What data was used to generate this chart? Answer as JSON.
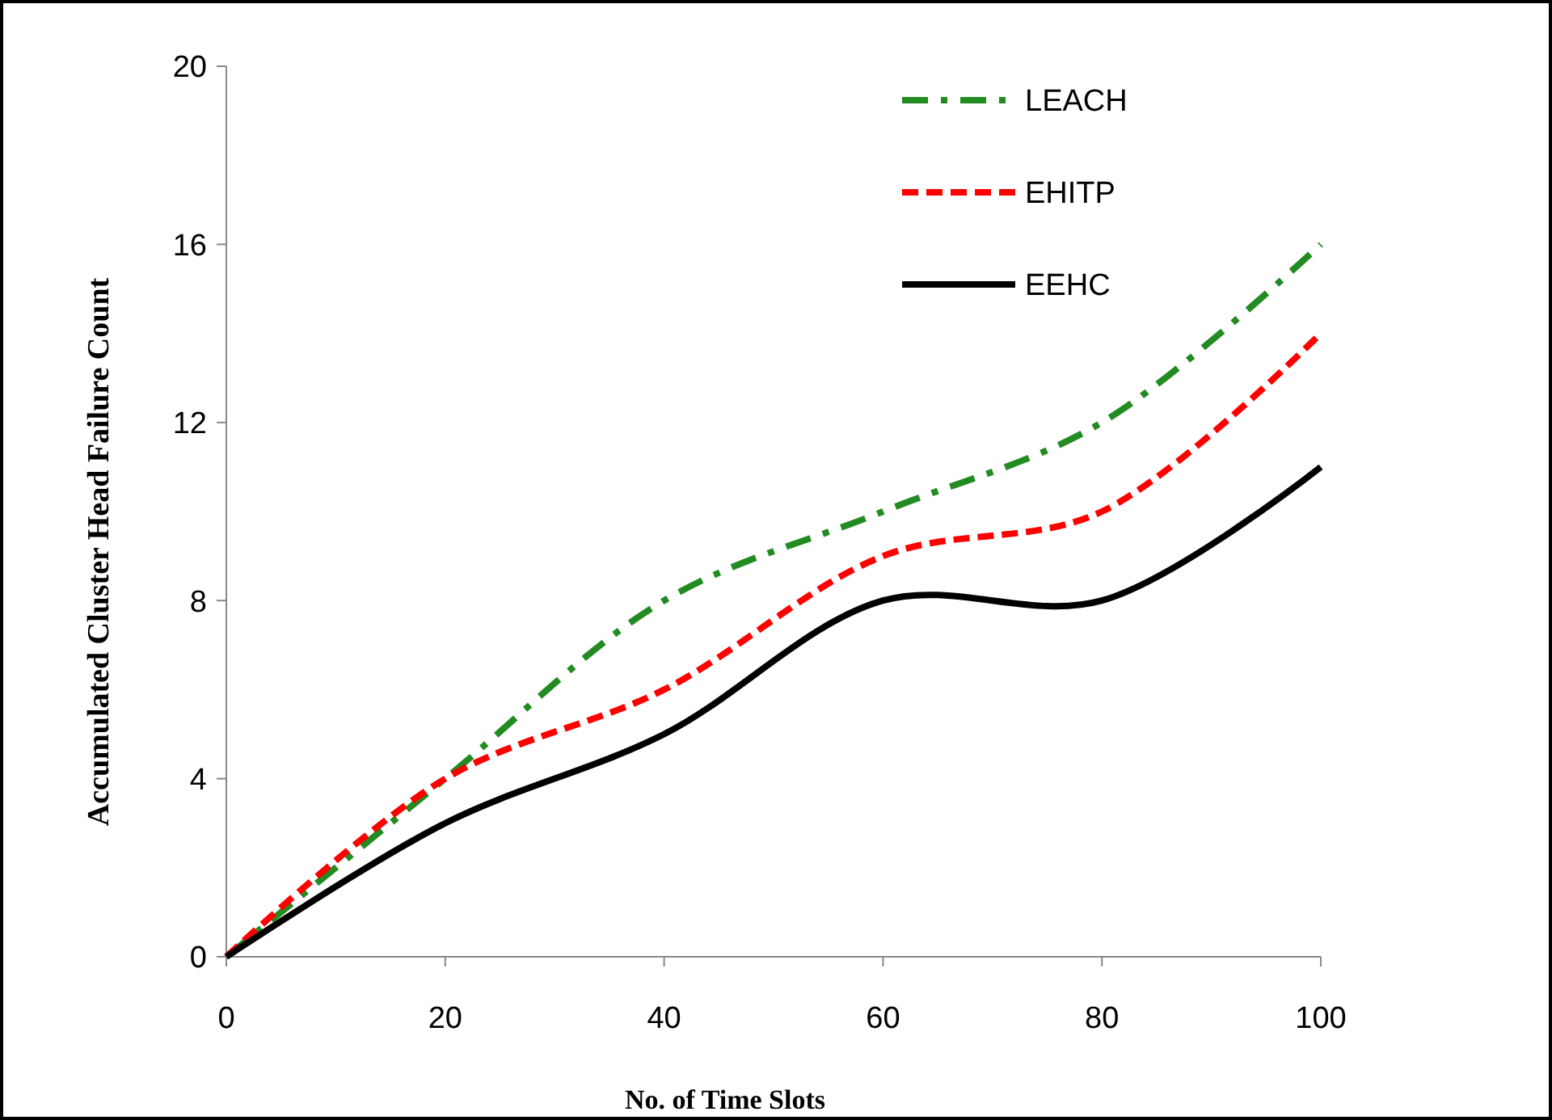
{
  "chart_data": {
    "type": "line",
    "xlabel": "No. of Time Slots",
    "ylabel": "Accumulated Cluster Head Failure Count",
    "x": [
      0,
      20,
      40,
      60,
      80,
      100
    ],
    "xlim": [
      0,
      100
    ],
    "xticks": [
      0,
      20,
      40,
      60,
      80,
      100
    ],
    "ylim": [
      0,
      20
    ],
    "yticks": [
      0,
      4,
      8,
      12,
      16,
      20
    ],
    "grid": false,
    "legend": "top right",
    "series": [
      {
        "name": "LEACH",
        "color": "#228b22",
        "line_style": "dashdot",
        "values": [
          0,
          4,
          8,
          10,
          12,
          16
        ]
      },
      {
        "name": "EHITP",
        "color": "#ff0000",
        "line_style": "dashed",
        "values": [
          0,
          4,
          6,
          9,
          10,
          14
        ]
      },
      {
        "name": "EEHC",
        "color": "#000000",
        "line_style": "solid",
        "values": [
          0,
          3,
          5,
          8,
          8,
          11
        ]
      }
    ]
  }
}
